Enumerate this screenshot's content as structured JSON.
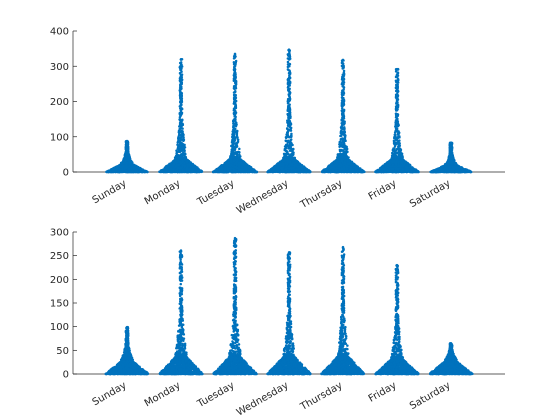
{
  "chart_data": [
    {
      "type": "scatter",
      "style": "swarm",
      "title": "",
      "xlabel": "",
      "ylabel": "",
      "grid": false,
      "series_color": "#0072BD",
      "categories": [
        "Sunday",
        "Monday",
        "Tuesday",
        "Wednesday",
        "Thursday",
        "Friday",
        "Saturday"
      ],
      "ylim": [
        0,
        400
      ],
      "yticks": [
        0,
        100,
        200,
        300,
        400
      ],
      "max_values": [
        88,
        320,
        335,
        347,
        318,
        292,
        83
      ],
      "bulk_values": [
        25,
        40,
        40,
        40,
        40,
        40,
        22
      ]
    },
    {
      "type": "scatter",
      "style": "swarm",
      "title": "",
      "xlabel": "",
      "ylabel": "",
      "grid": false,
      "series_color": "#0072BD",
      "categories": [
        "Sunday",
        "Monday",
        "Tuesday",
        "Wednesday",
        "Thursday",
        "Friday",
        "Saturday"
      ],
      "ylim": [
        0,
        300
      ],
      "yticks": [
        0,
        50,
        100,
        150,
        200,
        250,
        300
      ],
      "max_values": [
        99,
        261,
        287,
        257,
        268,
        230,
        65
      ],
      "bulk_values": [
        30,
        40,
        40,
        40,
        40,
        35,
        30
      ]
    }
  ]
}
